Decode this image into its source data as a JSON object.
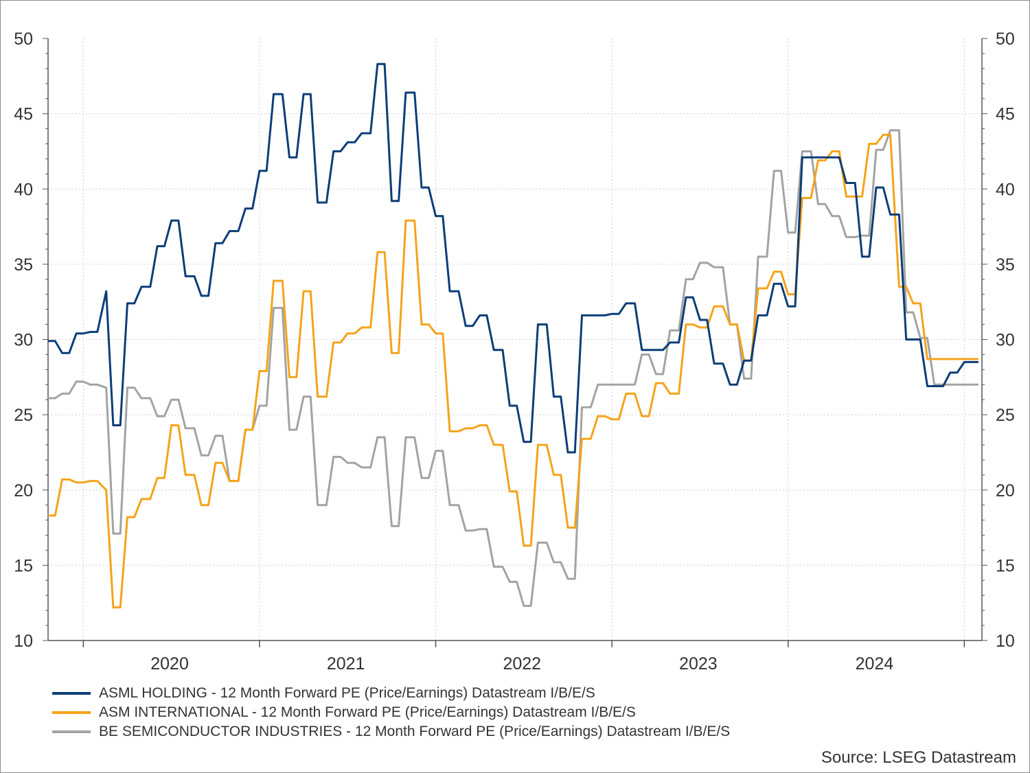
{
  "chart_data": {
    "type": "line",
    "xlabel": "",
    "ylabel": "",
    "ylim": [
      10,
      50
    ],
    "yticks": [
      10,
      15,
      20,
      25,
      30,
      35,
      40,
      45,
      50
    ],
    "y_right_ticks": [
      10,
      15,
      20,
      25,
      30,
      35,
      40,
      45,
      50
    ],
    "x_range": [
      2019.3,
      2024.6
    ],
    "x_tick_labels": [
      "2020",
      "2021",
      "2022",
      "2023",
      "2024"
    ],
    "x_tick_label_positions": [
      2019.99,
      2020.99,
      2021.99,
      2022.99,
      2023.99
    ],
    "x_year_boundaries": [
      2019.5,
      2020.5,
      2021.5,
      2022.5,
      2023.5,
      2024.5
    ],
    "grid": true,
    "legend_position": "bottom-left",
    "series": [
      {
        "name": "ASML HOLDING - 12 Month Forward PE (Price/Earnings) Datastream I/B/E/S",
        "color": "#0b3d78",
        "x": [
          2019.3,
          2019.34,
          2019.38,
          2019.42,
          2019.46,
          2019.5,
          2019.54,
          2019.58,
          2019.63,
          2019.67,
          2019.71,
          2019.75,
          2019.79,
          2019.83,
          2019.88,
          2019.92,
          2019.96,
          2020.0,
          2020.04,
          2020.08,
          2020.13,
          2020.17,
          2020.21,
          2020.25,
          2020.29,
          2020.33,
          2020.38,
          2020.42,
          2020.46,
          2020.5,
          2020.54,
          2020.58,
          2020.63,
          2020.67,
          2020.71,
          2020.75,
          2020.79,
          2020.83,
          2020.88,
          2020.92,
          2020.96,
          2021.0,
          2021.04,
          2021.08,
          2021.13,
          2021.17,
          2021.21,
          2021.25,
          2021.29,
          2021.33,
          2021.38,
          2021.42,
          2021.46,
          2021.5,
          2021.54,
          2021.58,
          2021.63,
          2021.67,
          2021.71,
          2021.75,
          2021.79,
          2021.83,
          2021.88,
          2021.92,
          2021.96,
          2022.0,
          2022.04,
          2022.08,
          2022.13,
          2022.17,
          2022.21,
          2022.25,
          2022.29,
          2022.33,
          2022.38,
          2022.42,
          2022.46,
          2022.5,
          2022.54,
          2022.58,
          2022.63,
          2022.67,
          2022.71,
          2022.75,
          2022.79,
          2022.83,
          2022.88,
          2022.92,
          2022.96,
          2023.0,
          2023.04,
          2023.08,
          2023.13,
          2023.17,
          2023.21,
          2023.25,
          2023.29,
          2023.33,
          2023.38,
          2023.42,
          2023.46,
          2023.5,
          2023.54,
          2023.58,
          2023.63
        ],
        "values": [
          29.9,
          29.9,
          29.1,
          29.1,
          30.4,
          30.4,
          30.5,
          30.5,
          33.2,
          24.3,
          24.3,
          32.4,
          32.4,
          33.5,
          33.5,
          36.2,
          36.2,
          37.9,
          37.9,
          34.2,
          34.2,
          32.9,
          32.9,
          36.4,
          36.4,
          37.2,
          37.2,
          38.7,
          38.7,
          41.2,
          41.2,
          46.3,
          46.3,
          42.1,
          42.1,
          46.3,
          46.3,
          39.1,
          39.1,
          42.5,
          42.5,
          43.1,
          43.1,
          43.7,
          43.7,
          48.3,
          48.3,
          39.2,
          39.2,
          46.4,
          46.4,
          40.1,
          40.1,
          38.2,
          38.2,
          33.2,
          33.2,
          30.9,
          30.9,
          31.6,
          31.6,
          29.3,
          29.3,
          25.6,
          25.6,
          23.2,
          23.2,
          31.0,
          31.0,
          26.2,
          26.2,
          22.5,
          22.5,
          31.6,
          31.6,
          31.6,
          31.6,
          31.7,
          31.7,
          32.4,
          32.4,
          29.3,
          29.3,
          29.3,
          29.3,
          29.8,
          29.8,
          32.8,
          32.8,
          31.3,
          31.3,
          28.4,
          28.4,
          27.0,
          27.0,
          28.6,
          28.6,
          31.6,
          31.6,
          33.7,
          33.7,
          32.2,
          32.2,
          42.1,
          42.1
        ]
      },
      {
        "name": "ASM INTERNATIONAL - 12 Month Forward PE (Price/Earnings) Datastream I/B/E/S",
        "color": "#f5a31a",
        "x": [
          2019.3,
          2019.34,
          2019.38,
          2019.42,
          2019.46,
          2019.5,
          2019.54,
          2019.58,
          2019.63,
          2019.67,
          2019.71,
          2019.75,
          2019.79,
          2019.83,
          2019.88,
          2019.92,
          2019.96,
          2020.0,
          2020.04,
          2020.08,
          2020.13,
          2020.17,
          2020.21,
          2020.25,
          2020.29,
          2020.33,
          2020.38,
          2020.42,
          2020.46,
          2020.5,
          2020.54,
          2020.58,
          2020.63,
          2020.67,
          2020.71,
          2020.75,
          2020.79,
          2020.83,
          2020.88,
          2020.92,
          2020.96,
          2021.0,
          2021.04,
          2021.08,
          2021.13,
          2021.17,
          2021.21,
          2021.25,
          2021.29,
          2021.33,
          2021.38,
          2021.42,
          2021.46,
          2021.5,
          2021.54,
          2021.58,
          2021.63,
          2021.67,
          2021.71,
          2021.75,
          2021.79,
          2021.83,
          2021.88,
          2021.92,
          2021.96,
          2022.0,
          2022.04,
          2022.08,
          2022.13,
          2022.17,
          2022.21,
          2022.25,
          2022.29,
          2022.33,
          2022.38,
          2022.42,
          2022.46,
          2022.5,
          2022.54,
          2022.58,
          2022.63,
          2022.67,
          2022.71,
          2022.75,
          2022.79,
          2022.83,
          2022.88,
          2022.92,
          2022.96,
          2023.0,
          2023.04,
          2023.08,
          2023.13,
          2023.17,
          2023.21,
          2023.25,
          2023.29,
          2023.33,
          2023.38,
          2023.42,
          2023.46,
          2023.5,
          2023.54,
          2023.58,
          2023.63
        ],
        "values": [
          18.3,
          18.3,
          20.7,
          20.7,
          20.5,
          20.5,
          20.6,
          20.6,
          20.0,
          12.2,
          12.2,
          18.2,
          18.2,
          19.4,
          19.4,
          20.8,
          20.8,
          24.3,
          24.3,
          21.0,
          21.0,
          19.0,
          19.0,
          21.8,
          21.8,
          20.6,
          20.6,
          24.0,
          24.0,
          27.9,
          27.9,
          33.9,
          33.9,
          27.5,
          27.5,
          33.2,
          33.2,
          26.2,
          26.2,
          29.8,
          29.8,
          30.4,
          30.4,
          30.8,
          30.8,
          35.8,
          35.8,
          29.1,
          29.1,
          37.9,
          37.9,
          31.0,
          31.0,
          30.4,
          30.4,
          23.9,
          23.9,
          24.1,
          24.1,
          24.3,
          24.3,
          23.0,
          23.0,
          19.9,
          19.9,
          16.3,
          16.3,
          23.0,
          23.0,
          21.0,
          21.0,
          17.5,
          17.5,
          23.4,
          23.4,
          24.9,
          24.9,
          24.7,
          24.7,
          26.4,
          26.4,
          24.9,
          24.9,
          27.1,
          27.1,
          26.4,
          26.4,
          31.0,
          31.0,
          30.8,
          30.8,
          32.2,
          32.2,
          31.0,
          31.0,
          28.6,
          28.6,
          33.4,
          33.4,
          34.5,
          34.5,
          33.0,
          33.0,
          39.4,
          39.4
        ]
      },
      {
        "name": "BE SEMICONDUCTOR INDUSTRIES - 12 Month Forward PE (Price/Earnings) Datastream I/B/E/S",
        "color": "#a3a3a3",
        "x": [
          2019.3,
          2019.34,
          2019.38,
          2019.42,
          2019.46,
          2019.5,
          2019.54,
          2019.58,
          2019.63,
          2019.67,
          2019.71,
          2019.75,
          2019.79,
          2019.83,
          2019.88,
          2019.92,
          2019.96,
          2020.0,
          2020.04,
          2020.08,
          2020.13,
          2020.17,
          2020.21,
          2020.25,
          2020.29,
          2020.33,
          2020.38,
          2020.42,
          2020.46,
          2020.5,
          2020.54,
          2020.58,
          2020.63,
          2020.67,
          2020.71,
          2020.75,
          2020.79,
          2020.83,
          2020.88,
          2020.92,
          2020.96,
          2021.0,
          2021.04,
          2021.08,
          2021.13,
          2021.17,
          2021.21,
          2021.25,
          2021.29,
          2021.33,
          2021.38,
          2021.42,
          2021.46,
          2021.5,
          2021.54,
          2021.58,
          2021.63,
          2021.67,
          2021.71,
          2021.75,
          2021.79,
          2021.83,
          2021.88,
          2021.92,
          2021.96,
          2022.0,
          2022.04,
          2022.08,
          2022.13,
          2022.17,
          2022.21,
          2022.25,
          2022.29,
          2022.33,
          2022.38,
          2022.42,
          2022.46,
          2022.5,
          2022.54,
          2022.58,
          2022.63,
          2022.67,
          2022.71,
          2022.75,
          2022.79,
          2022.83,
          2022.88,
          2022.92,
          2022.96,
          2023.0,
          2023.04,
          2023.08,
          2023.13,
          2023.17,
          2023.21,
          2023.25,
          2023.29,
          2023.33,
          2023.38,
          2023.42,
          2023.46,
          2023.5,
          2023.54,
          2023.58,
          2023.63
        ],
        "values": [
          26.1,
          26.1,
          26.4,
          26.4,
          27.2,
          27.2,
          27.0,
          27.0,
          26.8,
          17.1,
          17.1,
          26.8,
          26.8,
          26.1,
          26.1,
          24.9,
          24.9,
          26.0,
          26.0,
          24.1,
          24.1,
          22.3,
          22.3,
          23.6,
          23.6,
          20.6,
          20.6,
          24.0,
          24.0,
          25.6,
          25.6,
          32.1,
          32.1,
          24.0,
          24.0,
          26.2,
          26.2,
          19.0,
          19.0,
          22.2,
          22.2,
          21.8,
          21.8,
          21.5,
          21.5,
          23.5,
          23.5,
          17.6,
          17.6,
          23.5,
          23.5,
          20.8,
          20.8,
          22.6,
          22.6,
          19.0,
          19.0,
          17.3,
          17.3,
          17.4,
          17.4,
          14.9,
          14.9,
          13.9,
          13.9,
          12.3,
          12.3,
          16.5,
          16.5,
          15.2,
          15.2,
          14.1,
          14.1,
          25.5,
          25.5,
          27.0,
          27.0,
          27.0,
          27.0,
          27.0,
          27.0,
          29.0,
          29.0,
          27.7,
          27.7,
          30.6,
          30.6,
          34.0,
          34.0,
          35.1,
          35.1,
          34.8,
          34.8,
          31.0,
          31.0,
          27.4,
          27.4,
          35.5,
          35.5,
          41.2,
          41.2,
          37.1,
          37.1,
          42.5,
          42.5
        ]
      }
    ],
    "series_tail": {
      "x": [
        2023.67,
        2023.71,
        2023.75,
        2023.79,
        2023.83,
        2023.88,
        2023.92,
        2023.96,
        2024.0,
        2024.04,
        2024.08,
        2024.13,
        2024.17,
        2024.21,
        2024.25,
        2024.29,
        2024.33,
        2024.38,
        2024.42,
        2024.46,
        2024.5,
        2024.54,
        2024.58
      ],
      "asml": [
        42.1,
        42.1,
        42.1,
        42.1,
        40.4,
        40.4,
        35.5,
        35.5,
        40.1,
        40.1,
        38.3,
        38.3,
        30.0,
        30.0,
        30.0,
        26.9,
        26.9,
        26.9,
        27.8,
        27.8,
        28.5,
        28.5,
        28.5
      ],
      "asm": [
        41.9,
        41.9,
        42.5,
        42.5,
        39.5,
        39.5,
        39.5,
        43.0,
        43.0,
        43.6,
        43.6,
        33.5,
        33.5,
        32.4,
        32.4,
        28.7,
        28.7,
        28.7,
        28.7,
        28.7,
        28.7,
        28.7,
        28.7
      ],
      "besi": [
        39.0,
        39.0,
        38.2,
        38.2,
        36.8,
        36.8,
        36.9,
        36.9,
        42.6,
        42.6,
        43.9,
        43.9,
        31.8,
        31.8,
        30.1,
        30.1,
        27.0,
        27.0,
        27.0,
        27.0,
        27.0,
        27.0,
        27.0
      ]
    }
  },
  "source": "Source: LSEG Datastream"
}
